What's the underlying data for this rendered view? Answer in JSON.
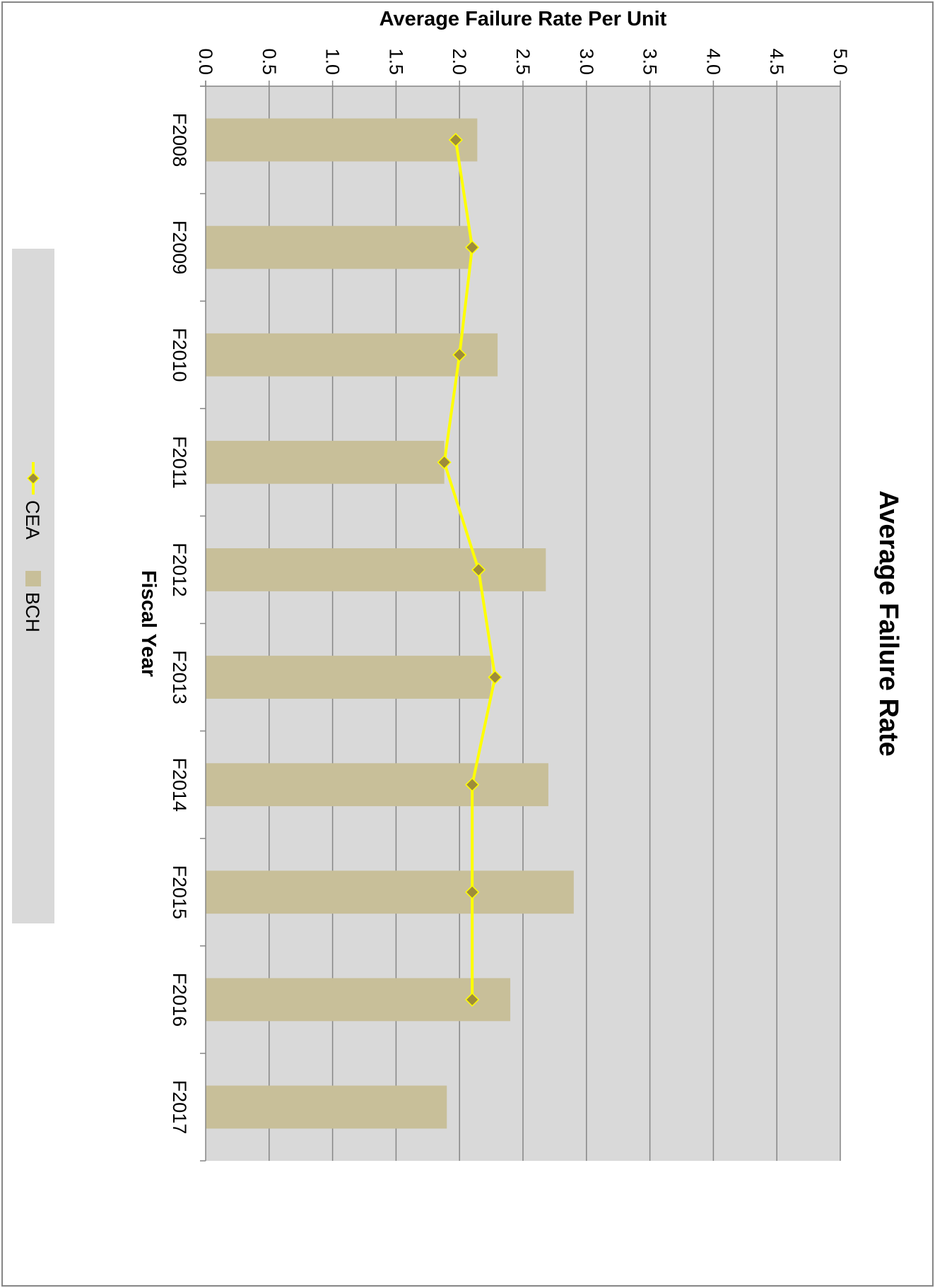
{
  "chart_data": {
    "type": "bar",
    "title": "Average Failure Rate",
    "xlabel": "Fiscal Year",
    "ylabel": "Average Failure Rate Per Unit",
    "categories": [
      "F2008",
      "F2009",
      "F2010",
      "F2011",
      "F2012",
      "F2013",
      "F2014",
      "F2015",
      "F2016",
      "F2017"
    ],
    "y_ticks": [
      "0.0",
      "0.5",
      "1.0",
      "1.5",
      "2.0",
      "2.5",
      "3.0",
      "3.5",
      "4.0",
      "4.5",
      "5.0"
    ],
    "ylim": [
      0,
      5
    ],
    "grid": true,
    "legend_position": "bottom",
    "orientation": "rotated 90 degrees clockwise",
    "series": [
      {
        "name": "BCH",
        "type": "bar",
        "color": "#c8bf99",
        "values": [
          2.14,
          2.08,
          2.3,
          1.88,
          2.68,
          2.25,
          2.7,
          2.9,
          2.4,
          1.9
        ]
      },
      {
        "name": "CEA",
        "type": "line",
        "color": "#ffff00",
        "marker": "diamond",
        "marker_color": "#9e8c3a",
        "values": [
          1.97,
          2.1,
          2.0,
          1.88,
          2.15,
          2.28,
          2.1,
          2.1,
          2.1,
          null
        ]
      }
    ],
    "colors": {
      "plot_background": "#d9d9d9",
      "gridline": "#868686",
      "legend_background": "#d9d9d9"
    }
  }
}
